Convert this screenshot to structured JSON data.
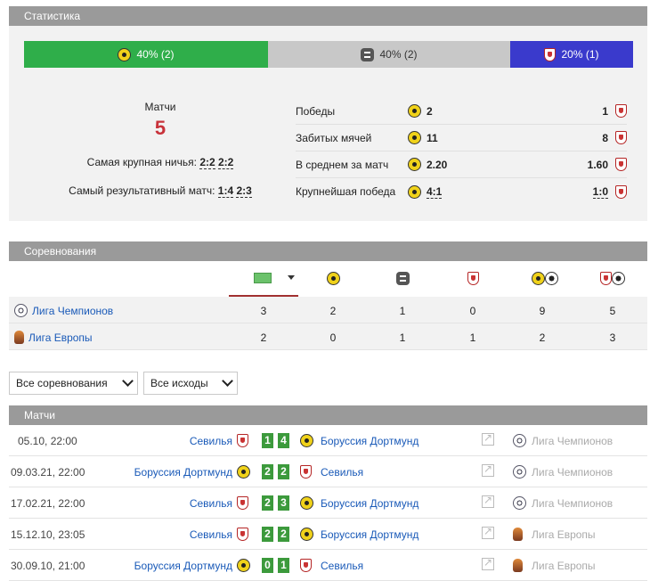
{
  "stats": {
    "header": "Статистика",
    "bar": {
      "win": {
        "label": "40% (2)",
        "icon": "bvb-icon"
      },
      "draw": {
        "label": "40% (2)",
        "icon": "draw-icon"
      },
      "loss": {
        "label": "20% (1)",
        "icon": "sevilla-icon"
      }
    },
    "matches_label": "Матчи",
    "matches_count": "5",
    "biggest_draw_label": "Самая крупная ничья:",
    "biggest_draw_values": [
      "2:2",
      "2:2"
    ],
    "most_goals_label": "Самый результативный матч:",
    "most_goals_values": [
      "1:4",
      "2:3"
    ],
    "rows": [
      {
        "label": "Победы",
        "home": "2",
        "away": "1",
        "linked": false
      },
      {
        "label": "Забитых мячей",
        "home": "11",
        "away": "8",
        "linked": false
      },
      {
        "label": "В среднем за матч",
        "home": "2.20",
        "away": "1.60",
        "linked": false
      },
      {
        "label": "Крупнейшая победа",
        "home": "4:1",
        "away": "1:0",
        "linked": true
      }
    ]
  },
  "competitions": {
    "header": "Соревнования",
    "rows": [
      {
        "name": "Лига Чемпионов",
        "icon": "champions-league-icon",
        "values": [
          "3",
          "2",
          "1",
          "0",
          "9",
          "5"
        ]
      },
      {
        "name": "Лига Европы",
        "icon": "europa-league-icon",
        "values": [
          "2",
          "0",
          "1",
          "1",
          "2",
          "3"
        ]
      }
    ]
  },
  "filters": {
    "competition": "Все соревнования",
    "outcome": "Все исходы"
  },
  "matches": {
    "header": "Матчи",
    "rows": [
      {
        "date": "05.10, 22:00",
        "home": "Севилья",
        "home_icon": "sevilla-icon",
        "score_home": "1",
        "score_away": "4",
        "away": "Боруссия Дортмунд",
        "away_icon": "bvb-icon",
        "competition": "Лига Чемпионов",
        "comp_icon": "champions-league-icon"
      },
      {
        "date": "09.03.21, 22:00",
        "home": "Боруссия Дортмунд",
        "home_icon": "bvb-icon",
        "score_home": "2",
        "score_away": "2",
        "away": "Севилья",
        "away_icon": "sevilla-icon",
        "competition": "Лига Чемпионов",
        "comp_icon": "champions-league-icon"
      },
      {
        "date": "17.02.21, 22:00",
        "home": "Севилья",
        "home_icon": "sevilla-icon",
        "score_home": "2",
        "score_away": "3",
        "away": "Боруссия Дортмунд",
        "away_icon": "bvb-icon",
        "competition": "Лига Чемпионов",
        "comp_icon": "champions-league-icon"
      },
      {
        "date": "15.12.10, 23:05",
        "home": "Севилья",
        "home_icon": "sevilla-icon",
        "score_home": "2",
        "score_away": "2",
        "away": "Боруссия Дортмунд",
        "away_icon": "bvb-icon",
        "competition": "Лига Европы",
        "comp_icon": "europa-league-icon"
      },
      {
        "date": "30.09.10, 21:00",
        "home": "Боруссия Дортмунд",
        "home_icon": "bvb-icon",
        "score_home": "0",
        "score_away": "1",
        "away": "Севилья",
        "away_icon": "sevilla-icon",
        "competition": "Лига Европы",
        "comp_icon": "europa-league-icon"
      }
    ]
  }
}
